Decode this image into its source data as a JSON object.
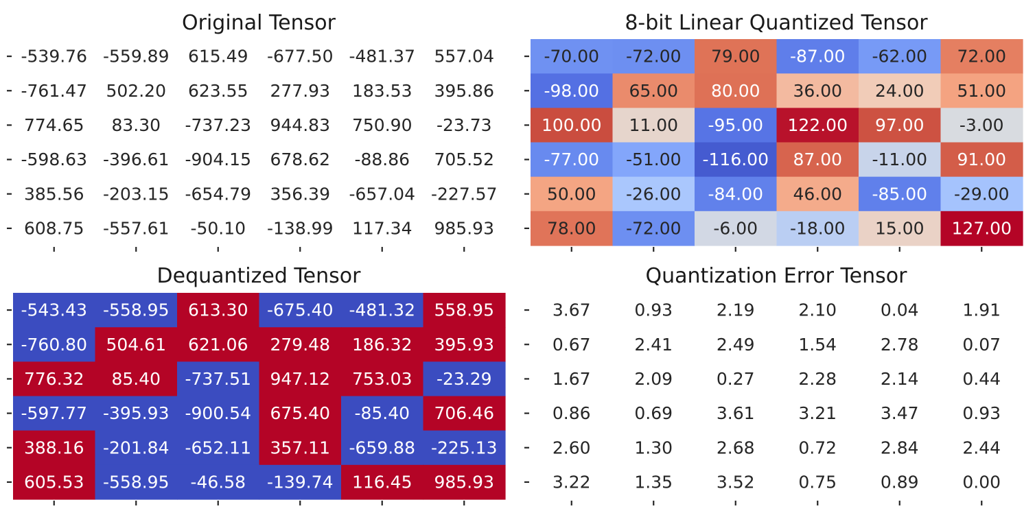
{
  "chart_data": [
    {
      "type": "heatmap",
      "title": "Original Tensor",
      "colormap": "none",
      "values": [
        [
          -539.76,
          -559.89,
          615.49,
          -677.5,
          -481.37,
          557.04
        ],
        [
          -761.47,
          502.2,
          623.55,
          277.93,
          183.53,
          395.86
        ],
        [
          774.65,
          83.3,
          -737.23,
          944.83,
          750.9,
          -23.73
        ],
        [
          -598.63,
          -396.61,
          -904.15,
          678.62,
          -88.86,
          705.52
        ],
        [
          385.56,
          -203.15,
          -654.79,
          356.39,
          -657.04,
          -227.57
        ],
        [
          608.75,
          -557.61,
          -50.1,
          -138.99,
          117.34,
          985.93
        ]
      ],
      "labels": [
        [
          "-539.76",
          "-559.89",
          "615.49",
          "-677.50",
          "-481.37",
          "557.04"
        ],
        [
          "-761.47",
          "502.20",
          "623.55",
          "277.93",
          "183.53",
          "395.86"
        ],
        [
          "774.65",
          "83.30",
          "-737.23",
          "944.83",
          "750.90",
          "-23.73"
        ],
        [
          "-598.63",
          "-396.61",
          "-904.15",
          "678.62",
          "-88.86",
          "705.52"
        ],
        [
          "385.56",
          "-203.15",
          "-654.79",
          "356.39",
          "-657.04",
          "-227.57"
        ],
        [
          "608.75",
          "-557.61",
          "-50.10",
          "-138.99",
          "117.34",
          "985.93"
        ]
      ]
    },
    {
      "type": "heatmap",
      "title": "8-bit Linear Quantized Tensor",
      "colormap": "coolwarm",
      "vmin": -128,
      "vmax": 127,
      "values": [
        [
          -70,
          -72,
          79,
          -87,
          -62,
          72
        ],
        [
          -98,
          65,
          80,
          36,
          24,
          51
        ],
        [
          100,
          11,
          -95,
          122,
          97,
          -3
        ],
        [
          -77,
          -51,
          -116,
          87,
          -11,
          91
        ],
        [
          50,
          -26,
          -84,
          46,
          -85,
          -29
        ],
        [
          78,
          -72,
          -6,
          -18,
          15,
          127
        ]
      ],
      "labels": [
        [
          "-70.00",
          "-72.00",
          "79.00",
          "-87.00",
          "-62.00",
          "72.00"
        ],
        [
          "-98.00",
          "65.00",
          "80.00",
          "36.00",
          "24.00",
          "51.00"
        ],
        [
          "100.00",
          "11.00",
          "-95.00",
          "122.00",
          "97.00",
          "-3.00"
        ],
        [
          "-77.00",
          "-51.00",
          "-116.00",
          "87.00",
          "-11.00",
          "91.00"
        ],
        [
          "50.00",
          "-26.00",
          "-84.00",
          "46.00",
          "-85.00",
          "-29.00"
        ],
        [
          "78.00",
          "-72.00",
          "-6.00",
          "-18.00",
          "15.00",
          "127.00"
        ]
      ]
    },
    {
      "type": "heatmap",
      "title": "Dequantized Tensor",
      "colormap": "coolwarm",
      "vmin": -1,
      "vmax": 1,
      "values": [
        [
          -543.43,
          -558.95,
          613.3,
          -675.4,
          -481.32,
          558.95
        ],
        [
          -760.8,
          504.61,
          621.06,
          279.48,
          186.32,
          395.93
        ],
        [
          776.32,
          85.4,
          -737.51,
          947.12,
          753.03,
          -23.29
        ],
        [
          -597.77,
          -395.93,
          -900.54,
          675.4,
          -85.4,
          706.46
        ],
        [
          388.16,
          -201.84,
          -652.11,
          357.11,
          -659.88,
          -225.13
        ],
        [
          605.53,
          -558.95,
          -46.58,
          -139.74,
          116.45,
          985.93
        ]
      ],
      "labels": [
        [
          "-543.43",
          "-558.95",
          "613.30",
          "-675.40",
          "-481.32",
          "558.95"
        ],
        [
          "-760.80",
          "504.61",
          "621.06",
          "279.48",
          "186.32",
          "395.93"
        ],
        [
          "776.32",
          "85.40",
          "-737.51",
          "947.12",
          "753.03",
          "-23.29"
        ],
        [
          "-597.77",
          "-395.93",
          "-900.54",
          "675.40",
          "-85.40",
          "706.46"
        ],
        [
          "388.16",
          "-201.84",
          "-652.11",
          "357.11",
          "-659.88",
          "-225.13"
        ],
        [
          "605.53",
          "-558.95",
          "-46.58",
          "-139.74",
          "116.45",
          "985.93"
        ]
      ]
    },
    {
      "type": "heatmap",
      "title": "Quantization Error Tensor",
      "colormap": "none",
      "values": [
        [
          3.67,
          0.93,
          2.19,
          2.1,
          0.04,
          1.91
        ],
        [
          0.67,
          2.41,
          2.49,
          1.54,
          2.78,
          0.07
        ],
        [
          1.67,
          2.09,
          0.27,
          2.28,
          2.14,
          0.44
        ],
        [
          0.86,
          0.69,
          3.61,
          3.21,
          3.47,
          0.93
        ],
        [
          2.6,
          1.3,
          2.68,
          0.72,
          2.84,
          2.44
        ],
        [
          3.22,
          1.35,
          3.52,
          0.75,
          0.89,
          0.0
        ]
      ],
      "labels": [
        [
          "3.67",
          "0.93",
          "2.19",
          "2.10",
          "0.04",
          "1.91"
        ],
        [
          "0.67",
          "2.41",
          "2.49",
          "1.54",
          "2.78",
          "0.07"
        ],
        [
          "1.67",
          "2.09",
          "0.27",
          "2.28",
          "2.14",
          "0.44"
        ],
        [
          "0.86",
          "0.69",
          "3.61",
          "3.21",
          "3.47",
          "0.93"
        ],
        [
          "2.60",
          "1.30",
          "2.68",
          "0.72",
          "2.84",
          "2.44"
        ],
        [
          "3.22",
          "1.35",
          "3.52",
          "0.75",
          "0.89",
          "0.00"
        ]
      ]
    }
  ],
  "colors": {
    "text_dark": "#262626",
    "text_light": "#ffffff",
    "cool": "#3b4cc0",
    "warm": "#b40426"
  }
}
